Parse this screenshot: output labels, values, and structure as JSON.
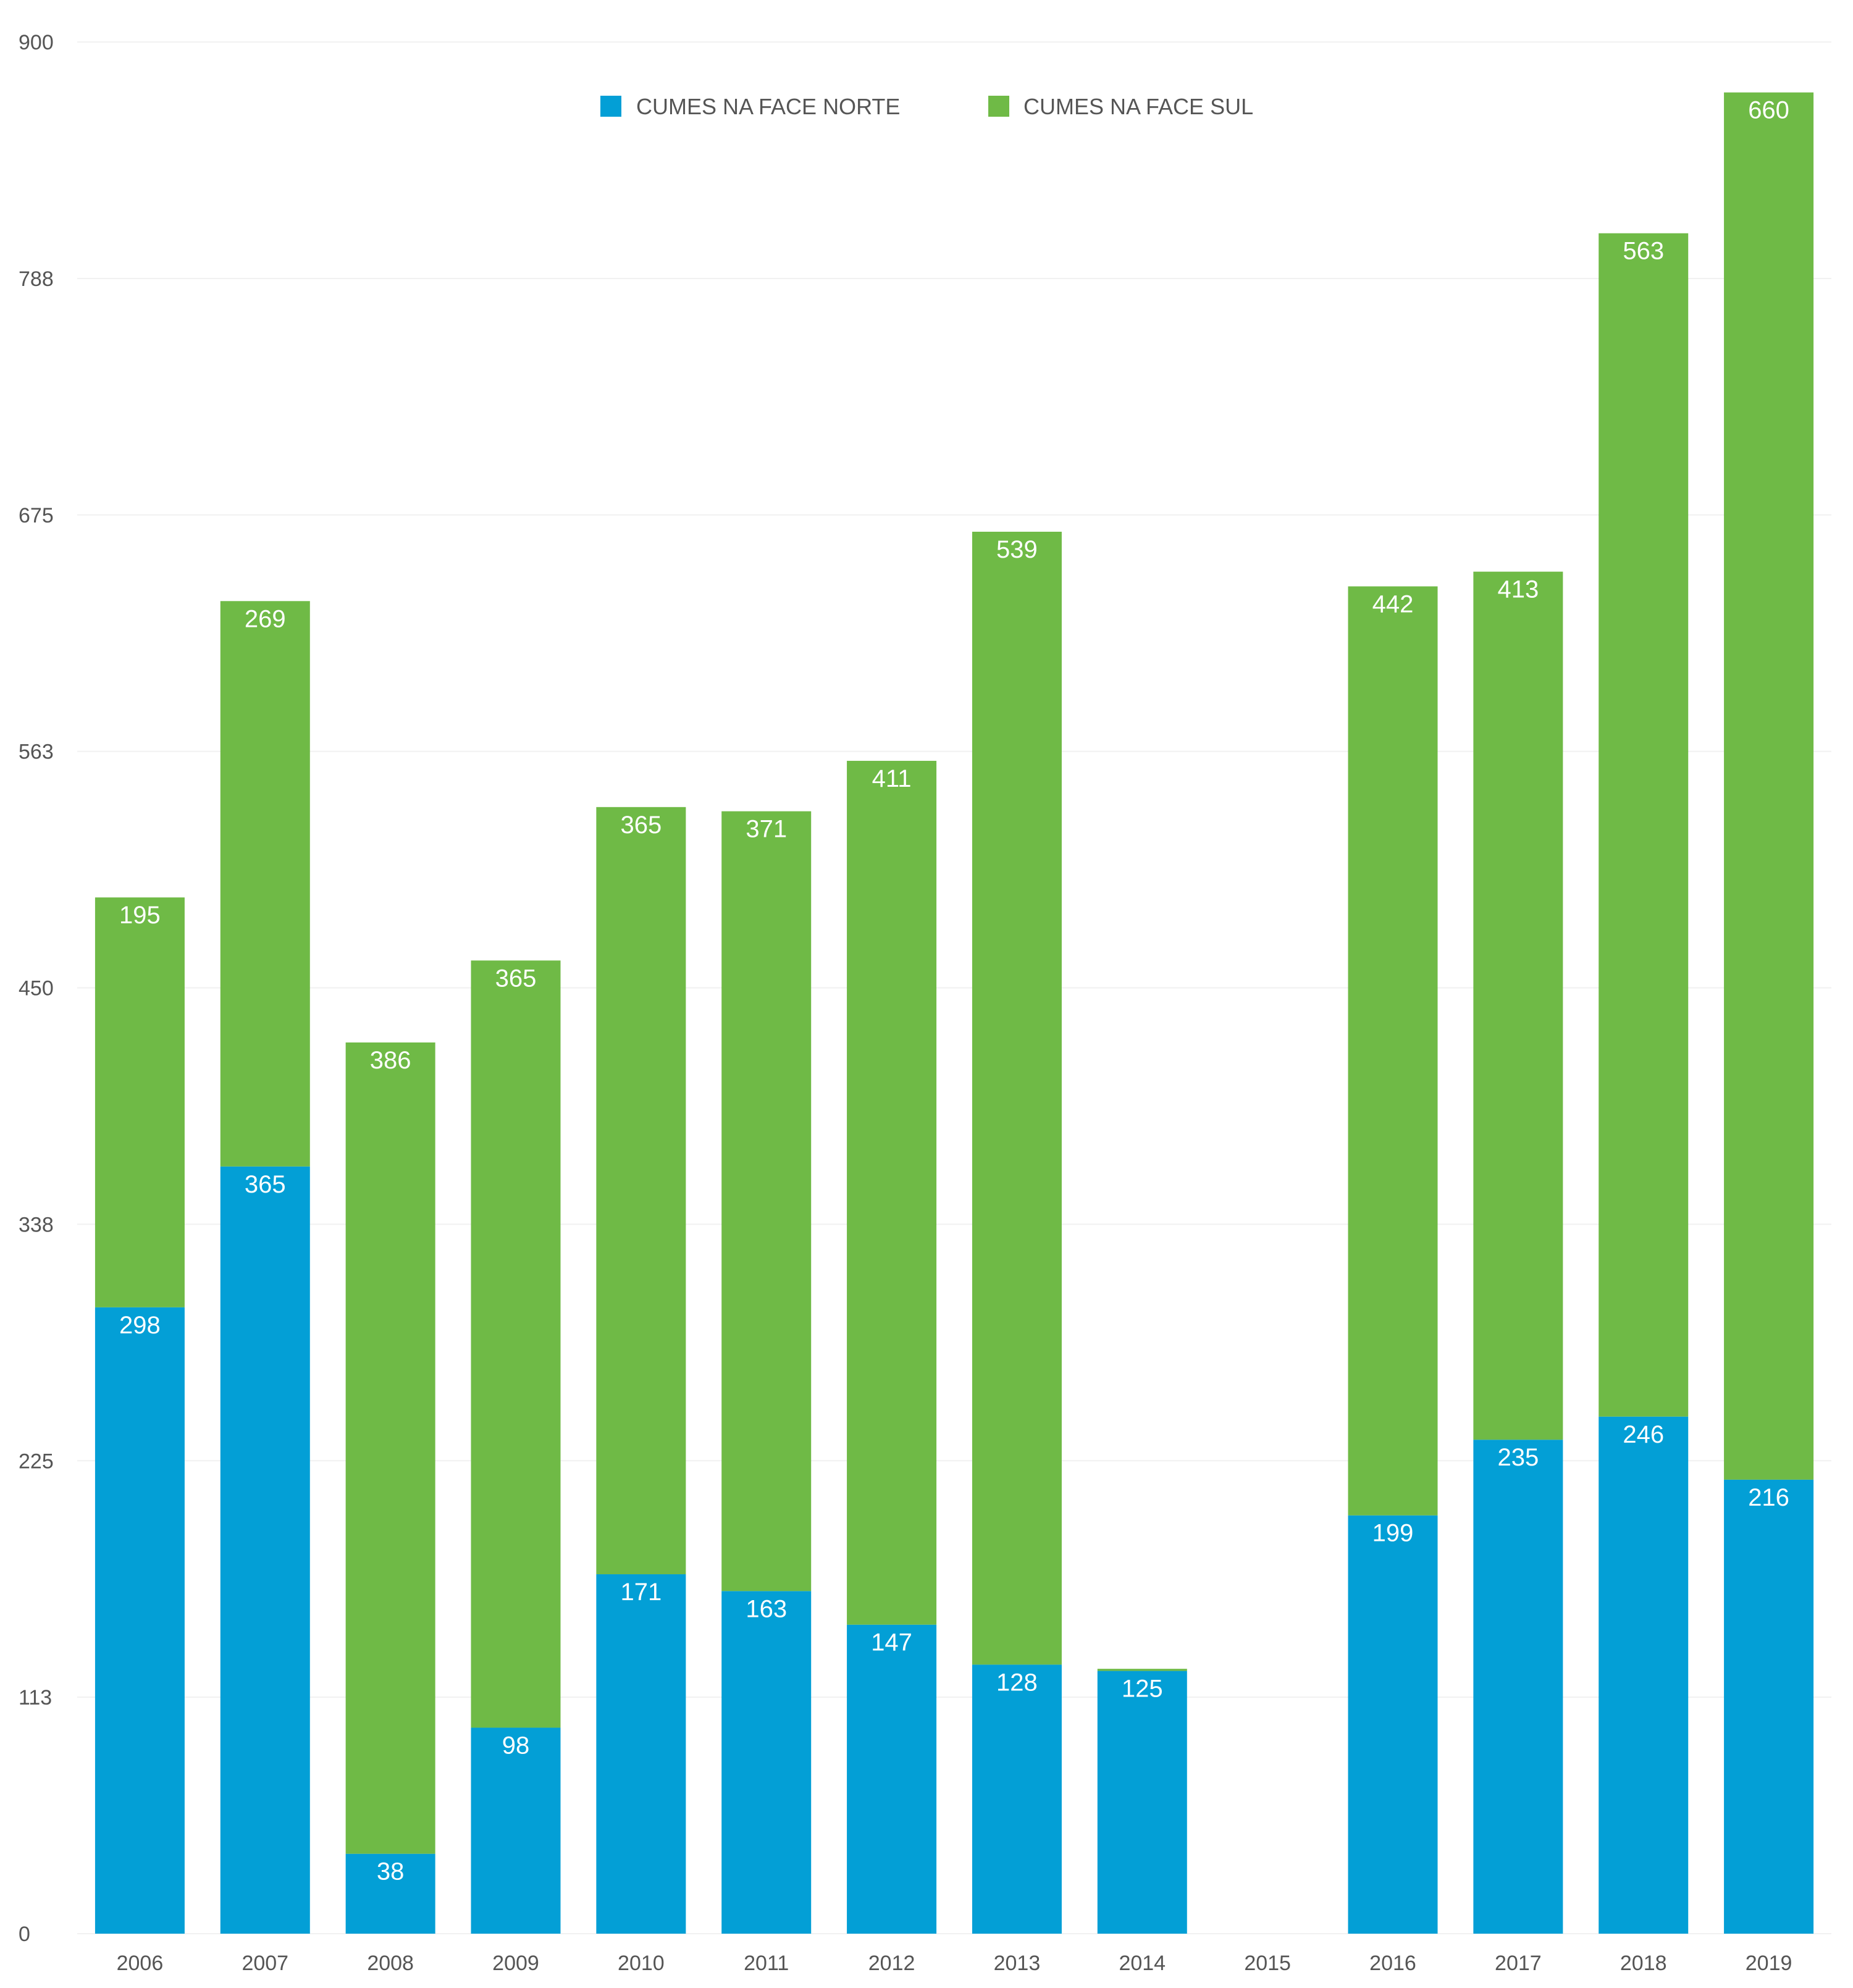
{
  "chart_data": {
    "type": "bar",
    "stacked": true,
    "categories": [
      "2006",
      "2007",
      "2008",
      "2009",
      "2010",
      "2011",
      "2012",
      "2013",
      "2014",
      "2015",
      "2016",
      "2017",
      "2018",
      "2019"
    ],
    "series": [
      {
        "name": "CUMES NA FACE NORTE",
        "color": "#039fd6",
        "values": [
          298,
          365,
          38,
          98,
          171,
          163,
          147,
          128,
          125,
          0,
          199,
          235,
          246,
          216
        ],
        "labels": [
          "298",
          "365",
          "38",
          "98",
          "171",
          "163",
          "147",
          "128",
          "125",
          "",
          "199",
          "235",
          "246",
          "216"
        ]
      },
      {
        "name": "CUMES NA FACE SUL",
        "color": "#6fba46",
        "values": [
          195,
          269,
          386,
          365,
          365,
          371,
          411,
          539,
          1,
          0,
          442,
          413,
          563,
          660
        ],
        "labels": [
          "195",
          "269",
          "386",
          "365",
          "365",
          "371",
          "411",
          "539",
          "",
          "",
          "442",
          "413",
          "563",
          "660"
        ]
      }
    ],
    "yticks": [
      "0",
      "113",
      "225",
      "338",
      "450",
      "563",
      "675",
      "788",
      "900"
    ],
    "ylim": [
      0,
      900
    ],
    "grid": true,
    "legend_position": "top-center"
  }
}
